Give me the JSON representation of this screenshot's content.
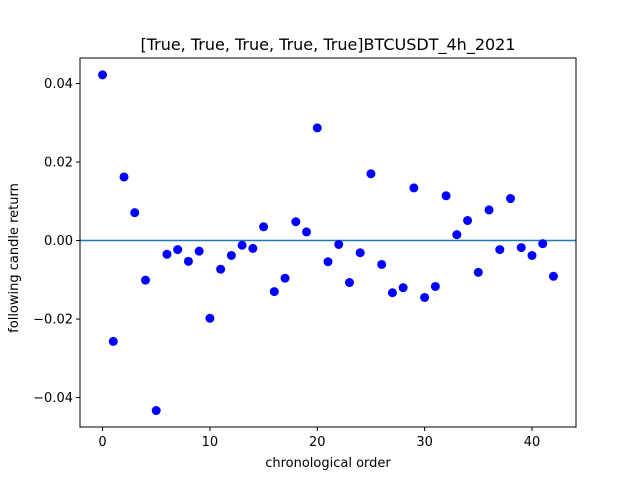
{
  "chart_data": {
    "type": "scatter",
    "title": "[True, True, True, True, True]BTCUSDT_4h_2021",
    "xlabel": "chronological order",
    "ylabel": "following candle return",
    "xlim": [
      -2.1,
      44.1
    ],
    "ylim": [
      -0.0475,
      0.0465
    ],
    "xticks": [
      0,
      10,
      20,
      30,
      40
    ],
    "xtick_labels": [
      "0",
      "10",
      "20",
      "30",
      "40"
    ],
    "yticks": [
      -0.04,
      -0.02,
      0.0,
      0.02,
      0.04
    ],
    "ytick_labels": [
      "−0.04",
      "−0.02",
      "0.00",
      "0.02",
      "0.04"
    ],
    "grid": false,
    "reference_line": {
      "y": 0,
      "color": "#1f77b4"
    },
    "marker_color": "#0000ff",
    "series": [
      {
        "x": [
          0,
          1,
          2,
          3,
          4,
          5,
          6,
          7,
          8,
          9,
          10,
          11,
          12,
          13,
          14,
          15,
          16,
          17,
          18,
          19,
          20,
          21,
          22,
          23,
          24,
          25,
          26,
          27,
          28,
          29,
          30,
          31,
          32,
          33,
          34,
          35,
          36,
          37,
          38,
          39,
          40,
          41,
          42
        ],
        "values": [
          0.0422,
          -0.0257,
          0.0162,
          0.0071,
          -0.0101,
          -0.0433,
          -0.0035,
          -0.0023,
          -0.0053,
          -0.0027,
          -0.0198,
          -0.0073,
          -0.0038,
          -0.0012,
          -0.002,
          0.0035,
          -0.013,
          -0.0096,
          0.0048,
          0.0022,
          0.0287,
          -0.0054,
          -0.001,
          -0.0107,
          -0.0031,
          0.017,
          -0.0061,
          -0.0133,
          -0.012,
          0.0134,
          -0.0145,
          -0.0117,
          0.0114,
          0.0015,
          0.0051,
          -0.0081,
          0.0078,
          -0.0023,
          0.0107,
          -0.0018,
          -0.0038,
          -0.0008,
          -0.0091
        ]
      }
    ]
  }
}
